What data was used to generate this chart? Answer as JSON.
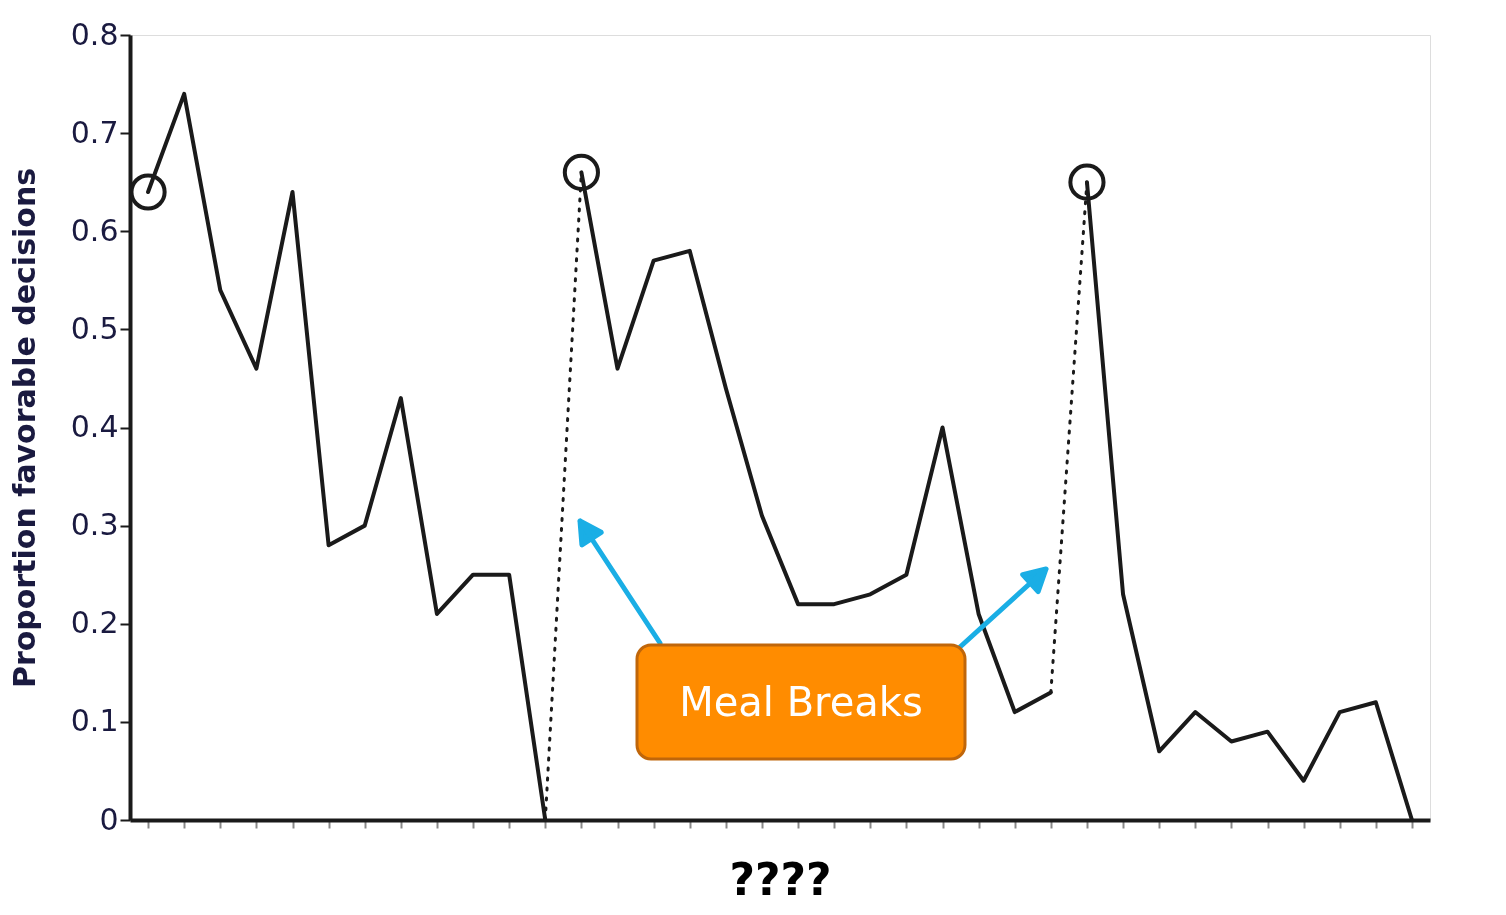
{
  "chart_data": {
    "type": "line",
    "xlabel": "????",
    "ylabel": "Proportion favorable decisions",
    "categories": [
      null,
      null,
      null,
      null,
      null,
      null,
      null,
      null,
      null,
      null,
      null,
      null,
      null,
      null,
      null,
      null,
      null,
      null,
      null,
      null,
      null,
      null,
      null,
      null,
      null,
      null,
      null,
      null,
      null,
      null,
      null,
      null,
      null,
      null,
      null,
      null
    ],
    "series": [
      {
        "color": "#1a1a1a",
        "line_style": "solid",
        "values": [
          0.64,
          0.74,
          0.54,
          0.46,
          0.64,
          0.28,
          0.3,
          0.43,
          0.21,
          0.25,
          0.25,
          0.0,
          null,
          null,
          null,
          null,
          null,
          null,
          null,
          null,
          null,
          null,
          null,
          null,
          null,
          null,
          null,
          null,
          null,
          null,
          null,
          null,
          null,
          null,
          null,
          null
        ]
      },
      {
        "color": "#1a1a1a",
        "line_style": "solid",
        "values": [
          null,
          null,
          null,
          null,
          null,
          null,
          null,
          null,
          null,
          null,
          null,
          null,
          0.66,
          0.46,
          0.57,
          0.58,
          0.44,
          0.31,
          0.22,
          0.22,
          0.23,
          0.25,
          0.4,
          0.21,
          0.11,
          0.13,
          null,
          null,
          null,
          null,
          null,
          null,
          null,
          null,
          null,
          null
        ]
      },
      {
        "color": "#1a1a1a",
        "line_style": "solid",
        "values": [
          null,
          null,
          null,
          null,
          null,
          null,
          null,
          null,
          null,
          null,
          null,
          null,
          null,
          null,
          null,
          null,
          null,
          null,
          null,
          null,
          null,
          null,
          null,
          null,
          null,
          null,
          0.65,
          0.23,
          0.07,
          0.11,
          0.08,
          0.09,
          0.04,
          0.11,
          0.12,
          0.0
        ]
      },
      {
        "color": "#1a1a1a",
        "line_style": "dotted",
        "values": [
          null,
          null,
          null,
          null,
          null,
          null,
          null,
          null,
          null,
          null,
          null,
          0.0,
          0.66,
          null,
          null,
          null,
          null,
          null,
          null,
          null,
          null,
          null,
          null,
          null,
          null,
          null,
          null,
          null,
          null,
          null,
          null,
          null,
          null,
          null,
          null,
          null
        ]
      },
      {
        "color": "#1a1a1a",
        "line_style": "dotted",
        "values": [
          null,
          null,
          null,
          null,
          null,
          null,
          null,
          null,
          null,
          null,
          null,
          null,
          null,
          null,
          null,
          null,
          null,
          null,
          null,
          null,
          null,
          null,
          null,
          null,
          null,
          0.13,
          0.65,
          null,
          null,
          null,
          null,
          null,
          null,
          null,
          null,
          null
        ]
      },
      {
        "type": "scatter",
        "color": "#1a1a1a",
        "marker": "circle",
        "values": [
          0.64,
          null,
          null,
          null,
          null,
          null,
          null,
          null,
          null,
          null,
          null,
          null,
          0.66,
          null,
          null,
          null,
          null,
          null,
          null,
          null,
          null,
          null,
          null,
          null,
          null,
          null,
          0.65,
          null,
          null,
          null,
          null,
          null,
          null,
          null,
          null,
          null
        ]
      }
    ],
    "ylim": [
      0,
      0.8
    ],
    "yticks": [
      0,
      0.1,
      0.2,
      0.3,
      0.4,
      0.5,
      0.6,
      0.7,
      0.8
    ],
    "tick_labels": "y",
    "grid": false,
    "annotations": [
      "Meal Breaks"
    ]
  }
}
